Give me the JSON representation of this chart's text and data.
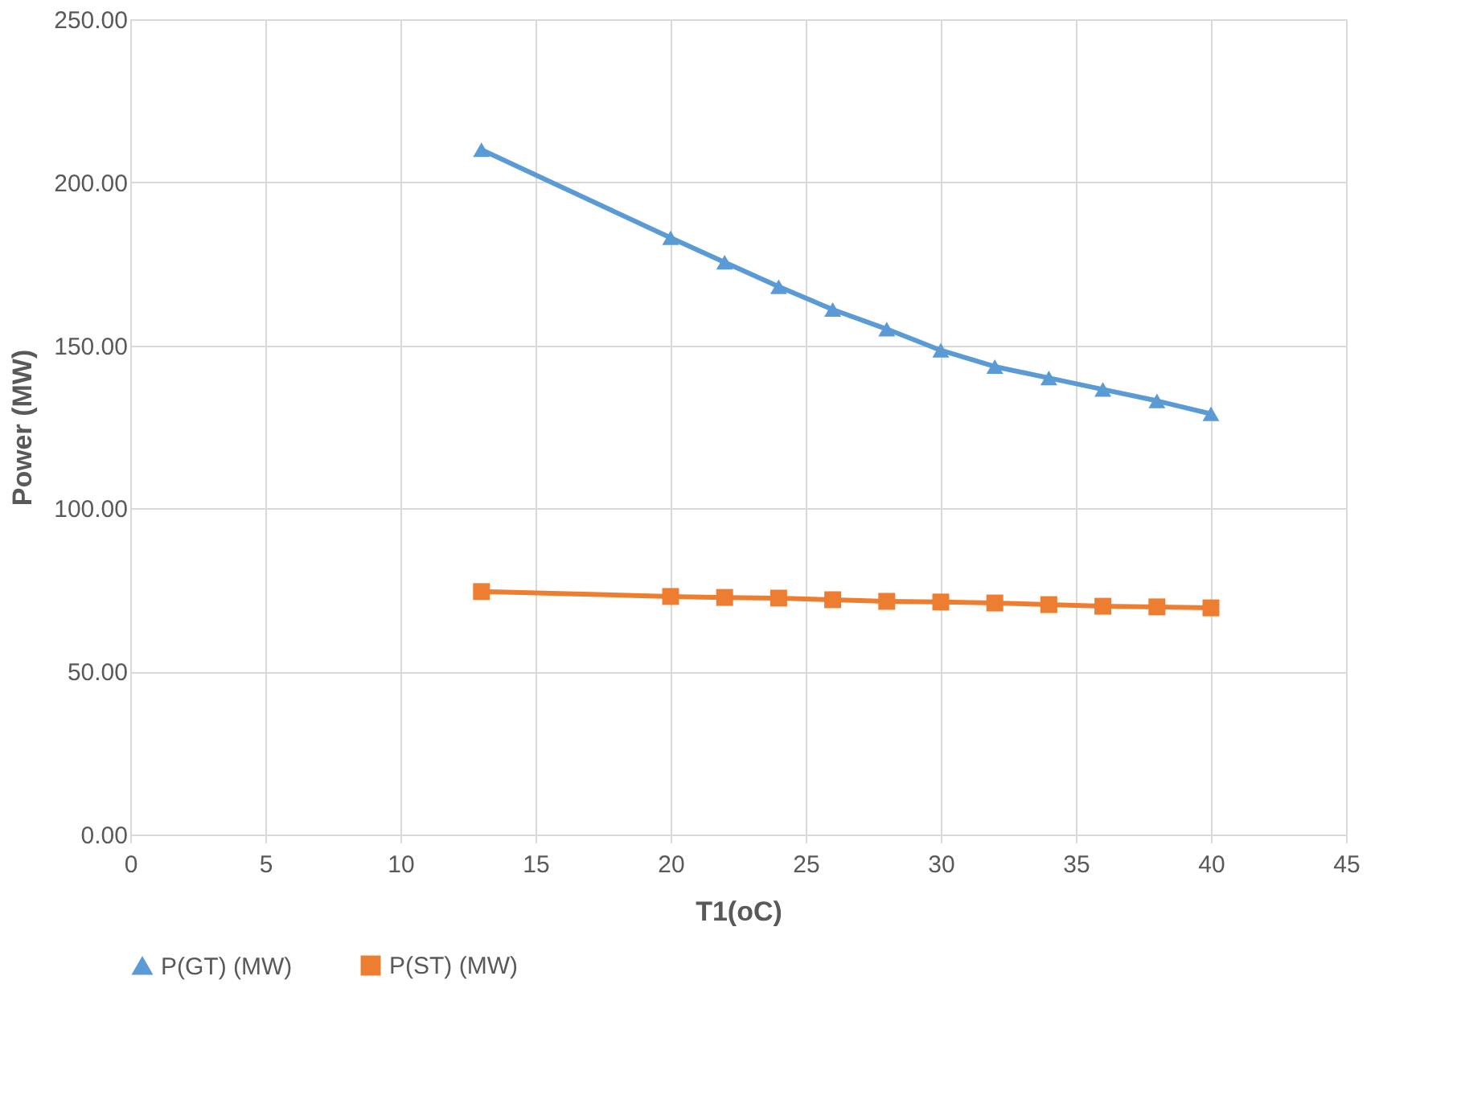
{
  "chart_data": {
    "type": "line",
    "xlabel": "T1(oC)",
    "ylabel": "Power (MW)",
    "x": [
      13,
      20,
      22,
      24,
      26,
      28,
      30,
      32,
      34,
      36,
      38,
      40
    ],
    "series": [
      {
        "name": "P(GT) (MW)",
        "color": "#5b9bd5",
        "marker": "triangle",
        "values": [
          210,
          183,
          175.5,
          168,
          161,
          155,
          148.5,
          143.5,
          140,
          136.5,
          133,
          129
        ]
      },
      {
        "name": "P(ST) (MW)",
        "color": "#ed7d31",
        "marker": "square",
        "values": [
          74.5,
          73,
          72.7,
          72.5,
          72,
          71.5,
          71.3,
          71,
          70.5,
          70,
          69.8,
          69.5
        ]
      }
    ],
    "xlim": [
      0,
      45
    ],
    "xticks": [
      0,
      5,
      10,
      15,
      20,
      25,
      30,
      35,
      40,
      45
    ],
    "ylim": [
      0,
      250
    ],
    "yticks": [
      {
        "value": 0,
        "label": "0.00"
      },
      {
        "value": 50,
        "label": "50.00"
      },
      {
        "value": 100,
        "label": "100.00"
      },
      {
        "value": 150,
        "label": "150.00"
      },
      {
        "value": 200,
        "label": "200.00"
      },
      {
        "value": 250,
        "label": "250.00"
      }
    ],
    "grid": true,
    "legend": "bottom",
    "line_style": "solid"
  }
}
